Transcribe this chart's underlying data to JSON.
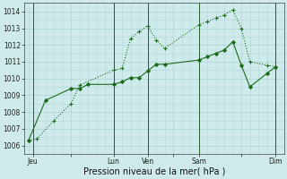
{
  "xlabel": "Pression niveau de la mer( hPa )",
  "bg_color": "#ceeaea",
  "grid_color": "#b0d8d8",
  "line_color": "#1a6b1a",
  "ylim": [
    1005.5,
    1014.5
  ],
  "xlim": [
    -0.5,
    30
  ],
  "xtick_labels": [
    "Jeu",
    "",
    "Lun",
    "Ven",
    "",
    "Sam",
    "",
    "Dim"
  ],
  "xtick_positions": [
    0.5,
    5,
    10,
    14,
    17,
    20,
    25,
    29
  ],
  "line1_x": [
    0,
    1,
    3,
    5,
    6,
    10,
    11,
    12,
    13,
    14,
    15,
    16,
    20,
    21,
    22,
    23,
    24,
    25,
    26,
    28,
    29
  ],
  "line1_y": [
    1006.3,
    1006.4,
    1007.5,
    1008.5,
    1009.6,
    1010.5,
    1010.6,
    1012.4,
    1012.8,
    1013.15,
    1012.3,
    1011.8,
    1013.2,
    1013.4,
    1013.6,
    1013.8,
    1014.1,
    1013.0,
    1011.0,
    1010.8,
    1010.7
  ],
  "line2_x": [
    0,
    2,
    5,
    6,
    7,
    10,
    11,
    12,
    13,
    14,
    15,
    16,
    20,
    21,
    22,
    23,
    24,
    25,
    26,
    28,
    29
  ],
  "line2_y": [
    1006.3,
    1008.7,
    1009.4,
    1009.4,
    1009.65,
    1009.65,
    1009.8,
    1010.05,
    1010.05,
    1010.45,
    1010.85,
    1010.85,
    1011.1,
    1011.3,
    1011.5,
    1011.7,
    1012.2,
    1010.8,
    1009.5,
    1010.3,
    1010.7
  ],
  "ytick_values": [
    1006,
    1007,
    1008,
    1009,
    1010,
    1011,
    1012,
    1013,
    1014
  ],
  "day_lines_x": [
    0.5,
    10,
    14,
    20,
    29
  ],
  "xlabel_fontsize": 7,
  "tick_fontsize": 5.5
}
